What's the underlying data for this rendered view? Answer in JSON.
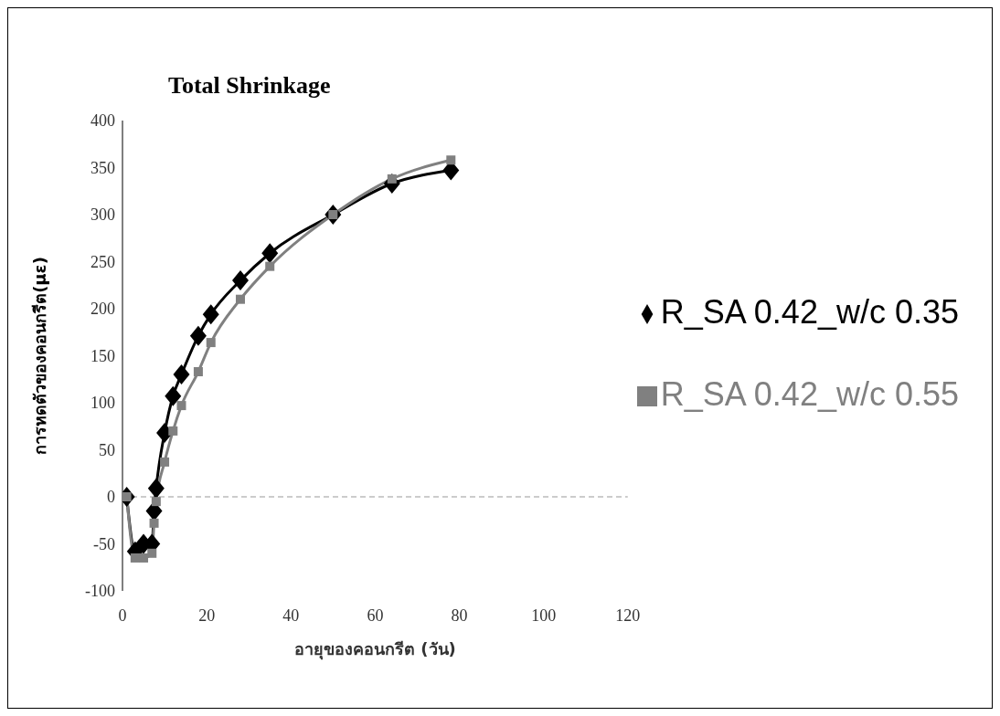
{
  "chart_data": {
    "type": "line",
    "title": "Total Shrinkage",
    "xlabel": "อายุของคอนกรีต (วัน)",
    "ylabel": "การหดตัวของคอนกรีต(με)",
    "xlim": [
      0,
      120
    ],
    "xticks": [
      0,
      20,
      40,
      60,
      80,
      100,
      120
    ],
    "ylim": [
      -100,
      400
    ],
    "yticks": [
      -100,
      -50,
      0,
      50,
      100,
      150,
      200,
      250,
      300,
      350,
      400
    ],
    "grid": false,
    "legend": "right",
    "line_style": "solid",
    "ref_lines": [
      {
        "axis": "y",
        "value": 0,
        "color": "#999999",
        "line_style": "dashed"
      }
    ],
    "series": [
      {
        "name": "R_SA 0.42_w/c 0.35",
        "color": "#000000",
        "marker": "diamond",
        "x": [
          1,
          3,
          5,
          7,
          7.5,
          8,
          10,
          12,
          14,
          18,
          21,
          28,
          35,
          50,
          64,
          78
        ],
        "values": [
          0,
          -58,
          -50,
          -50,
          -15,
          9,
          68,
          107,
          130,
          171,
          194,
          230,
          259,
          300,
          333,
          347
        ]
      },
      {
        "name": "R_SA 0.42_w/c 0.55",
        "color": "#808080",
        "marker": "square",
        "x": [
          1,
          3,
          5,
          7,
          7.5,
          8,
          10,
          12,
          14,
          18,
          21,
          28,
          35,
          50,
          64,
          78
        ],
        "values": [
          0,
          -65,
          -65,
          -60,
          -28,
          -5,
          37,
          70,
          97,
          133,
          164,
          210,
          245,
          300,
          338,
          358
        ]
      }
    ]
  }
}
